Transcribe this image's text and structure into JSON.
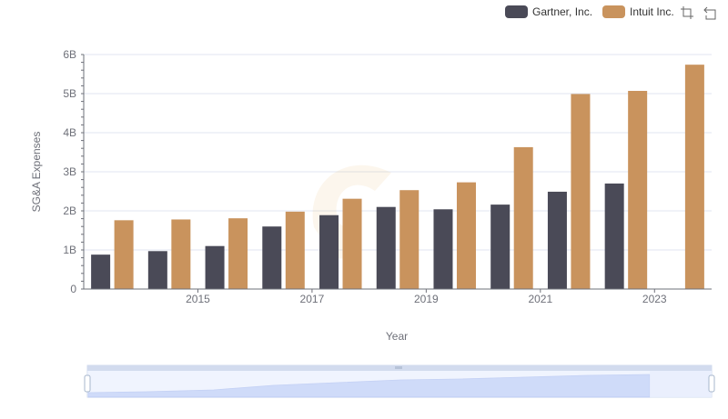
{
  "chart_data": {
    "type": "bar",
    "title": "",
    "xlabel": "Year",
    "ylabel": "SG&A Expenses",
    "x": [
      2014,
      2015,
      2016,
      2017,
      2018,
      2019,
      2020,
      2021,
      2022,
      2023,
      2024
    ],
    "x_tick_labels": [
      "2015",
      "2017",
      "2019",
      "2021",
      "2023"
    ],
    "y_tick_labels": [
      "0",
      "1B",
      "2B",
      "3B",
      "4B",
      "5B",
      "6B"
    ],
    "ylim": [
      0,
      6000000000
    ],
    "grid": true,
    "legend_position": "top-right",
    "series": [
      {
        "name": "Gartner, Inc.",
        "color": "#4a4a57",
        "values": [
          880000000,
          970000000,
          1100000000,
          1600000000,
          1890000000,
          2100000000,
          2040000000,
          2160000000,
          2490000000,
          2700000000,
          null
        ]
      },
      {
        "name": "Intuit Inc.",
        "color": "#c9935d",
        "values": [
          1760000000,
          1780000000,
          1810000000,
          1980000000,
          2310000000,
          2530000000,
          2730000000,
          3630000000,
          4990000000,
          5070000000,
          5740000000
        ]
      }
    ]
  },
  "toolbox": {
    "zoom_icon": "zoom-select-icon",
    "restore_icon": "restore-icon"
  },
  "datazoom": {
    "range_start_percent": 0,
    "range_end_percent": 100
  }
}
